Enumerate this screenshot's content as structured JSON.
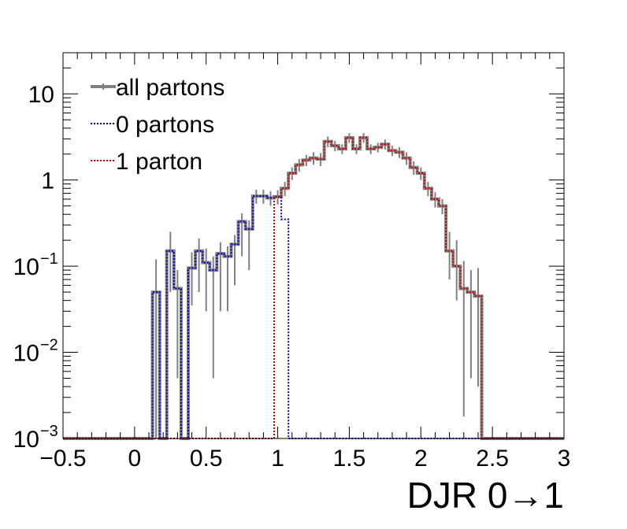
{
  "chart_data": {
    "type": "line",
    "xlabel": "DJR 0→1",
    "ylabel": "",
    "xlim": [
      -0.5,
      3.0
    ],
    "ylim": [
      0.001,
      30
    ],
    "log_y": true,
    "grid": false,
    "legend_position": "top-left",
    "x_ticks": [
      {
        "value": -0.5,
        "label": "−0.5"
      },
      {
        "value": 0,
        "label": "0"
      },
      {
        "value": 0.5,
        "label": "0.5"
      },
      {
        "value": 1,
        "label": "1"
      },
      {
        "value": 1.5,
        "label": "1.5"
      },
      {
        "value": 2,
        "label": "2"
      },
      {
        "value": 2.5,
        "label": "2.5"
      },
      {
        "value": 3,
        "label": "3"
      }
    ],
    "y_ticks": [
      {
        "value": 0.001,
        "base": "10",
        "exp": "−3"
      },
      {
        "value": 0.01,
        "base": "10",
        "exp": "−2"
      },
      {
        "value": 0.1,
        "base": "10",
        "exp": "−1"
      },
      {
        "value": 1,
        "base": "1",
        "exp": ""
      },
      {
        "value": 10,
        "base": "10",
        "exp": ""
      }
    ],
    "bin_width": 0.05,
    "bin_edges_start": 0.125,
    "series": [
      {
        "name": "all partons",
        "color": "#808080",
        "style": "solid",
        "values": [
          0.05,
          0,
          0.15,
          0.055,
          0,
          0.095,
          0.15,
          0.11,
          0.09,
          0.14,
          0.13,
          0.18,
          0.33,
          0.27,
          0.65,
          0.65,
          0.62,
          0.64,
          0.8,
          1.2,
          1.5,
          1.7,
          1.8,
          1.75,
          2.8,
          2.5,
          2.3,
          3.1,
          2.3,
          3.1,
          2.3,
          2.4,
          2.6,
          2.2,
          2.1,
          1.8,
          1.4,
          1.2,
          0.8,
          0.6,
          0.5,
          0.15,
          0.1,
          0.055,
          0.05,
          0.045
        ],
        "errors_up": [
          0.07,
          0,
          0.1,
          0.035,
          0,
          0.05,
          0.06,
          0.05,
          0.04,
          0.05,
          0.04,
          0.05,
          0.08,
          0.07,
          0.12,
          0.12,
          0.12,
          0.12,
          0.15,
          0.2,
          0.25,
          0.25,
          0.3,
          0.3,
          0.4,
          0.35,
          0.3,
          0.4,
          0.3,
          0.4,
          0.3,
          0.3,
          0.35,
          0.3,
          0.3,
          0.3,
          0.25,
          0.2,
          0.15,
          0.12,
          0.1,
          0.1,
          0.1,
          0.06,
          0.04,
          0.05
        ],
        "errors_down": [
          0.05,
          0,
          0.1,
          0.05,
          0,
          0.06,
          0.1,
          0.08,
          0.085,
          0.11,
          0.1,
          0.12,
          0.2,
          0.18,
          0.12,
          0.12,
          0.12,
          0.12,
          0.15,
          0.2,
          0.25,
          0.25,
          0.3,
          0.3,
          0.4,
          0.35,
          0.3,
          0.4,
          0.3,
          0.4,
          0.3,
          0.3,
          0.35,
          0.3,
          0.3,
          0.3,
          0.25,
          0.2,
          0.15,
          0.12,
          0.1,
          0.08,
          0.06,
          0.0532,
          0.045,
          0.041
        ]
      },
      {
        "name": "0 partons",
        "color": "#0000cc",
        "style": "dotted",
        "values": [
          0.05,
          0,
          0.15,
          0.055,
          0,
          0.095,
          0.15,
          0.11,
          0.09,
          0.14,
          0.13,
          0.18,
          0.33,
          0.27,
          0.65,
          0.65,
          0.62,
          0.64,
          0.35,
          0,
          0,
          0,
          0,
          0,
          0,
          0,
          0,
          0,
          0,
          0,
          0,
          0,
          0,
          0,
          0,
          0,
          0,
          0,
          0,
          0,
          0,
          0,
          0,
          0,
          0,
          0
        ]
      },
      {
        "name": "1 parton",
        "color": "#cc0000",
        "style": "dotted",
        "values": [
          0,
          0,
          0,
          0,
          0,
          0,
          0,
          0,
          0,
          0,
          0,
          0,
          0,
          0,
          0,
          0,
          0,
          0.64,
          0.8,
          1.2,
          1.5,
          1.7,
          1.8,
          1.75,
          2.8,
          2.5,
          2.3,
          3.1,
          2.3,
          3.1,
          2.3,
          2.4,
          2.6,
          2.2,
          2.1,
          1.8,
          1.4,
          1.2,
          0.8,
          0.6,
          0.5,
          0.15,
          0.1,
          0.055,
          0.05,
          0.045
        ]
      }
    ]
  }
}
